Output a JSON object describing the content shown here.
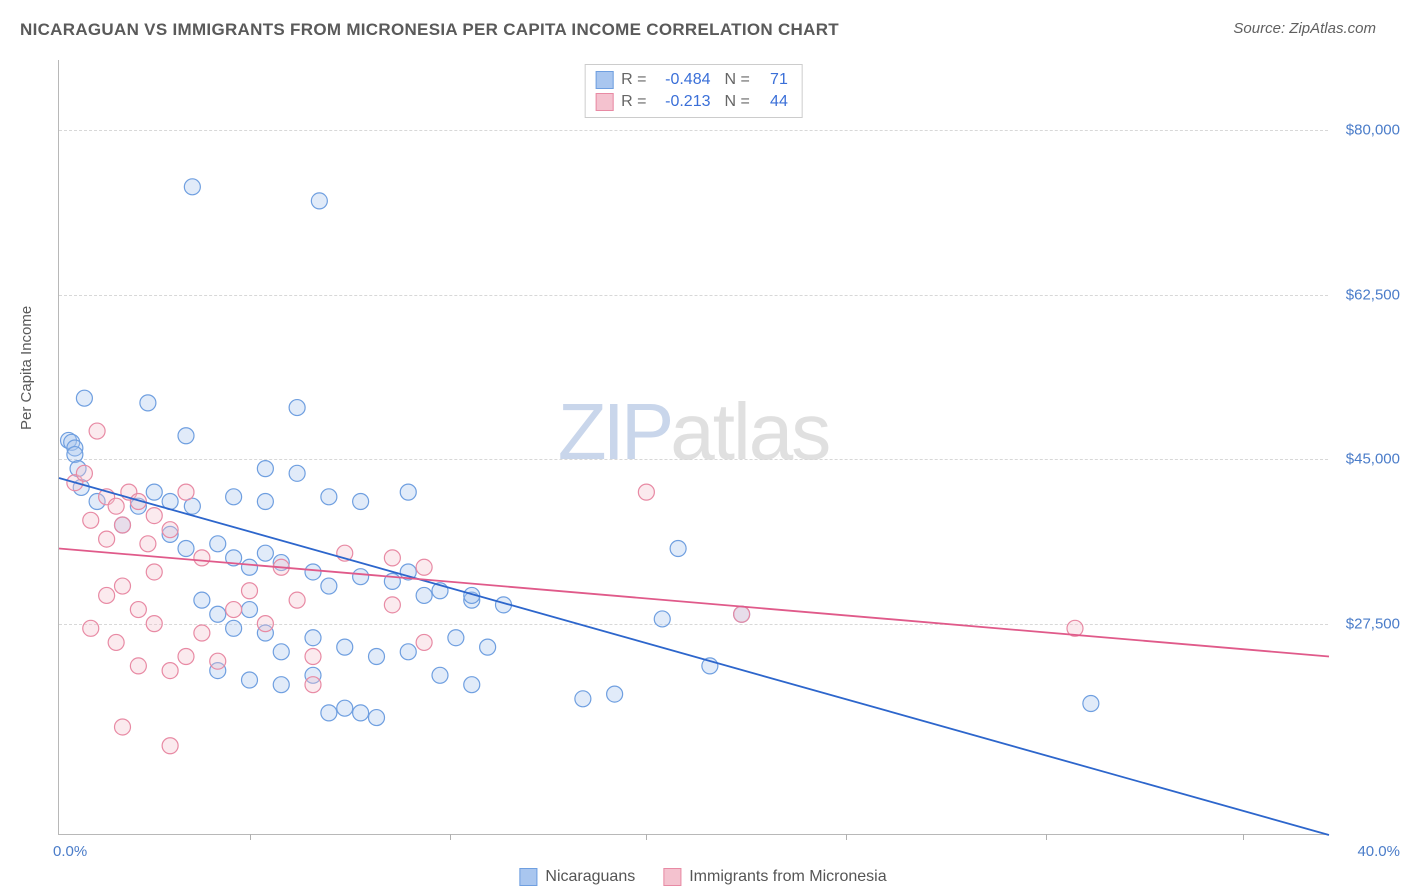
{
  "title": "NICARAGUAN VS IMMIGRANTS FROM MICRONESIA PER CAPITA INCOME CORRELATION CHART",
  "source_label": "Source: ",
  "source_name": "ZipAtlas.com",
  "y_axis_title": "Per Capita Income",
  "watermark_a": "ZIP",
  "watermark_b": "atlas",
  "chart": {
    "type": "scatter-with-regression",
    "xlim": [
      0,
      40
    ],
    "ylim": [
      5000,
      87500
    ],
    "x_unit": "%",
    "y_unit": "$",
    "background_color": "#ffffff",
    "grid_color": "#d8d8d8",
    "axis_color": "#b8b8b8",
    "x_ticks": [
      0,
      40
    ],
    "x_tick_labels": [
      "0.0%",
      "40.0%"
    ],
    "x_minor_ticks": [
      6.0,
      12.3,
      18.5,
      24.8,
      31.1,
      37.3
    ],
    "y_ticks": [
      27500,
      45000,
      62500,
      80000
    ],
    "y_tick_labels": [
      "$27,500",
      "$45,000",
      "$62,500",
      "$80,000"
    ],
    "tick_label_color": "#4a7cc9",
    "tick_label_fontsize": 15,
    "marker_radius": 8,
    "marker_fill_opacity": 0.35,
    "marker_stroke_width": 1.2,
    "line_width": 1.8
  },
  "series": [
    {
      "key": "nicaraguans",
      "label": "Nicaraguans",
      "color_fill": "#a9c6ef",
      "color_stroke": "#6f9fe0",
      "line_color": "#2d66cc",
      "R": "-0.484",
      "N": "71",
      "regression": {
        "x1": 0,
        "y1": 43000,
        "x2": 40,
        "y2": 5000
      },
      "points": [
        [
          0.3,
          47000
        ],
        [
          0.4,
          46800
        ],
        [
          0.5,
          46200
        ],
        [
          0.5,
          45500
        ],
        [
          0.6,
          44000
        ],
        [
          4.2,
          74000
        ],
        [
          8.2,
          72500
        ],
        [
          0.8,
          51500
        ],
        [
          2.8,
          51000
        ],
        [
          6.5,
          44000
        ],
        [
          7.5,
          50500
        ],
        [
          4.0,
          47500
        ],
        [
          1.2,
          40500
        ],
        [
          0.7,
          42000
        ],
        [
          2.5,
          40000
        ],
        [
          3.0,
          41500
        ],
        [
          3.5,
          40500
        ],
        [
          4.2,
          40000
        ],
        [
          5.5,
          41000
        ],
        [
          6.5,
          40500
        ],
        [
          7.5,
          43500
        ],
        [
          8.5,
          41000
        ],
        [
          9.5,
          40500
        ],
        [
          11.0,
          41500
        ],
        [
          2.0,
          38000
        ],
        [
          3.5,
          37000
        ],
        [
          4.0,
          35500
        ],
        [
          5.0,
          36000
        ],
        [
          5.5,
          34500
        ],
        [
          6.0,
          33500
        ],
        [
          6.5,
          35000
        ],
        [
          7.0,
          34000
        ],
        [
          8.0,
          33000
        ],
        [
          8.5,
          31500
        ],
        [
          9.5,
          32500
        ],
        [
          10.5,
          32000
        ],
        [
          11.0,
          33000
        ],
        [
          11.5,
          30500
        ],
        [
          12.0,
          31000
        ],
        [
          13.0,
          30000
        ],
        [
          12.5,
          26000
        ],
        [
          4.5,
          30000
        ],
        [
          5.0,
          28500
        ],
        [
          5.5,
          27000
        ],
        [
          6.0,
          29000
        ],
        [
          6.5,
          26500
        ],
        [
          7.0,
          24500
        ],
        [
          8.0,
          26000
        ],
        [
          9.0,
          25000
        ],
        [
          10.0,
          24000
        ],
        [
          11.0,
          24500
        ],
        [
          13.5,
          25000
        ],
        [
          5.0,
          22500
        ],
        [
          6.0,
          21500
        ],
        [
          7.0,
          21000
        ],
        [
          8.0,
          22000
        ],
        [
          8.5,
          18000
        ],
        [
          9.0,
          18500
        ],
        [
          9.5,
          18000
        ],
        [
          10.0,
          17500
        ],
        [
          12.0,
          22000
        ],
        [
          13.0,
          21000
        ],
        [
          13.0,
          30500
        ],
        [
          14.0,
          29500
        ],
        [
          16.5,
          19500
        ],
        [
          19.5,
          35500
        ],
        [
          20.5,
          23000
        ],
        [
          21.5,
          28500
        ],
        [
          32.5,
          19000
        ],
        [
          19.0,
          28000
        ],
        [
          17.5,
          20000
        ]
      ]
    },
    {
      "key": "micronesia",
      "label": "Immigrants from Micronesia",
      "color_fill": "#f4c2cf",
      "color_stroke": "#e88aa4",
      "line_color": "#e05a8a",
      "R": "-0.213",
      "N": "44",
      "regression": {
        "x1": 0,
        "y1": 35500,
        "x2": 40,
        "y2": 24000
      },
      "points": [
        [
          0.5,
          42500
        ],
        [
          0.8,
          43500
        ],
        [
          1.2,
          48000
        ],
        [
          1.5,
          41000
        ],
        [
          1.0,
          38500
        ],
        [
          1.8,
          40000
        ],
        [
          2.0,
          38000
        ],
        [
          1.5,
          36500
        ],
        [
          2.2,
          41500
        ],
        [
          2.5,
          40500
        ],
        [
          3.0,
          39000
        ],
        [
          2.8,
          36000
        ],
        [
          3.5,
          37500
        ],
        [
          4.0,
          41500
        ],
        [
          4.5,
          34500
        ],
        [
          3.0,
          33000
        ],
        [
          2.0,
          31500
        ],
        [
          1.5,
          30500
        ],
        [
          2.5,
          29000
        ],
        [
          3.0,
          27500
        ],
        [
          1.0,
          27000
        ],
        [
          1.8,
          25500
        ],
        [
          2.5,
          23000
        ],
        [
          3.5,
          22500
        ],
        [
          4.0,
          24000
        ],
        [
          5.0,
          23500
        ],
        [
          4.5,
          26500
        ],
        [
          5.5,
          29000
        ],
        [
          6.0,
          31000
        ],
        [
          6.5,
          27500
        ],
        [
          7.0,
          33500
        ],
        [
          7.5,
          30000
        ],
        [
          8.0,
          24000
        ],
        [
          8.0,
          21000
        ],
        [
          9.0,
          35000
        ],
        [
          10.5,
          34500
        ],
        [
          11.5,
          33500
        ],
        [
          10.5,
          29500
        ],
        [
          11.5,
          25500
        ],
        [
          18.5,
          41500
        ],
        [
          21.5,
          28500
        ],
        [
          32.0,
          27000
        ],
        [
          3.5,
          14500
        ],
        [
          2.0,
          16500
        ]
      ]
    }
  ],
  "stats_legend_labels": {
    "R": "R =",
    "N": "N ="
  }
}
